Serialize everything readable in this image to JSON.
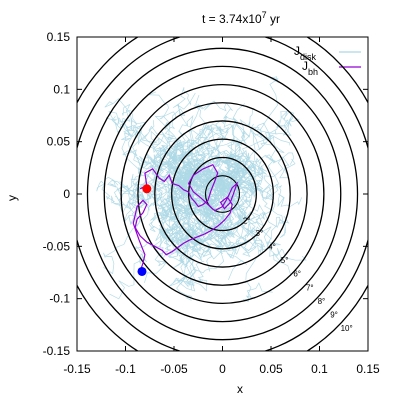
{
  "chart_data": {
    "type": "line",
    "title": {
      "prefix": "t = 3.74x10",
      "exponent": "7",
      "suffix": " yr"
    },
    "xlabel": "x",
    "ylabel": "y",
    "xlim": [
      -0.15,
      0.15
    ],
    "ylim": [
      -0.15,
      0.15
    ],
    "xticks": [
      -0.15,
      -0.1,
      -0.05,
      0,
      0.05,
      0.1,
      0.15
    ],
    "xtick_labels": [
      "-0.15",
      "-0.1",
      "-0.05",
      "0",
      "0.05",
      "0.1",
      "0.15"
    ],
    "yticks": [
      -0.15,
      -0.1,
      -0.05,
      0,
      0.05,
      0.1,
      0.15
    ],
    "ytick_labels": [
      "-0.15",
      "-0.1",
      "-0.05",
      "0",
      "0.05",
      "0.1",
      "0.15"
    ],
    "grid": false,
    "legend_position": "top-right",
    "legend": [
      {
        "base": "J",
        "sub": "disk",
        "color": "#add8e6"
      },
      {
        "base": "J",
        "sub": "bh",
        "color": "#9400d3"
      }
    ],
    "reference_circles": {
      "center": [
        0,
        0
      ],
      "color": "#000000",
      "radii": [
        0.0175,
        0.0349,
        0.0524,
        0.0698,
        0.0872,
        0.1045,
        0.1219,
        0.1392,
        0.1564,
        0.1736
      ],
      "labels": [
        {
          "text": "2°",
          "x": 0.025,
          "y": -0.028
        },
        {
          "text": "3°",
          "x": 0.038,
          "y": -0.04
        },
        {
          "text": "4°",
          "x": 0.051,
          "y": -0.053
        },
        {
          "text": "5°",
          "x": 0.064,
          "y": -0.066
        },
        {
          "text": "6°",
          "x": 0.077,
          "y": -0.079
        },
        {
          "text": "7°",
          "x": 0.09,
          "y": -0.092
        },
        {
          "text": "8°",
          "x": 0.102,
          "y": -0.105
        },
        {
          "text": "9°",
          "x": 0.115,
          "y": -0.118
        },
        {
          "text": "10°",
          "x": 0.128,
          "y": -0.131
        }
      ]
    },
    "series": [
      {
        "name": "Jdisk",
        "color": "#add8e6",
        "shape": "noisy_cloud",
        "center": [
          -0.02,
          0
        ],
        "spread_x": 0.13,
        "spread_y": 0.13,
        "tracks": 60
      },
      {
        "name": "Jbh",
        "color": "#9400d3",
        "x": [
          -0.085,
          -0.078,
          -0.08,
          -0.072,
          -0.065,
          -0.06,
          -0.055,
          -0.052,
          -0.045,
          -0.04,
          -0.035,
          -0.032,
          -0.028,
          -0.025,
          -0.02,
          -0.015,
          -0.012,
          -0.008,
          -0.005,
          -0.01,
          -0.02,
          -0.03,
          -0.035,
          -0.03,
          -0.022,
          -0.015,
          -0.008,
          0,
          0.005,
          0.01,
          0.015,
          0.012,
          0.008,
          0.002,
          -0.002,
          0.005,
          0.01,
          0.008,
          0.002,
          -0.004,
          -0.01,
          -0.018,
          -0.026,
          -0.034,
          -0.04,
          -0.046,
          -0.052,
          -0.058,
          -0.062,
          -0.07,
          -0.078,
          -0.085,
          -0.09,
          -0.088,
          -0.082,
          -0.078,
          -0.082,
          -0.088,
          -0.092,
          -0.086,
          -0.08,
          -0.082,
          -0.085
        ],
        "y": [
          0.005,
          0.008,
          0.02,
          0.024,
          0.015,
          0.012,
          0.018,
          0.01,
          0.008,
          0.004,
          0.002,
          -0.004,
          -0.008,
          -0.012,
          -0.01,
          -0.006,
          0.003,
          0.012,
          0.02,
          0.028,
          0.024,
          0.018,
          0.01,
          0.002,
          -0.004,
          -0.01,
          -0.016,
          -0.012,
          -0.004,
          0.006,
          0.01,
          0.002,
          -0.008,
          -0.014,
          -0.008,
          -0.003,
          -0.01,
          -0.018,
          -0.025,
          -0.03,
          -0.034,
          -0.038,
          -0.041,
          -0.044,
          -0.047,
          -0.051,
          -0.055,
          -0.058,
          -0.054,
          -0.05,
          -0.046,
          -0.04,
          -0.032,
          -0.024,
          -0.018,
          -0.01,
          -0.006,
          -0.012,
          -0.028,
          -0.044,
          -0.058,
          -0.066,
          -0.074
        ]
      }
    ],
    "markers": [
      {
        "name": "red-marker",
        "x": -0.078,
        "y": 0.005,
        "color": "#ff0000"
      },
      {
        "name": "blue-marker",
        "x": -0.083,
        "y": -0.074,
        "color": "#0000ff"
      }
    ]
  }
}
